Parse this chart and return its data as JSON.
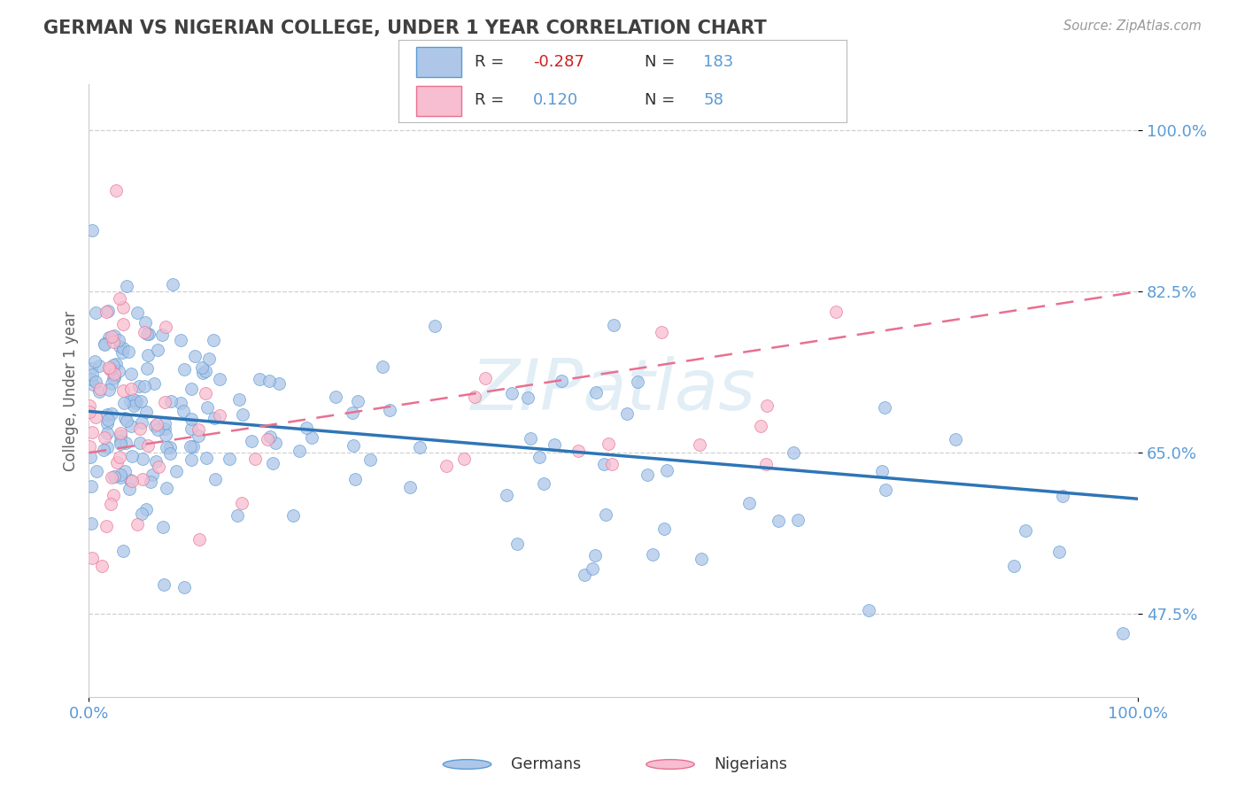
{
  "title": "GERMAN VS NIGERIAN COLLEGE, UNDER 1 YEAR CORRELATION CHART",
  "source_text": "Source: ZipAtlas.com",
  "ylabel": "College, Under 1 year",
  "xlim": [
    0.0,
    1.0
  ],
  "ylim": [
    0.385,
    1.05
  ],
  "yticks": [
    0.475,
    0.65,
    0.825,
    1.0
  ],
  "ytick_labels": [
    "47.5%",
    "65.0%",
    "82.5%",
    "100.0%"
  ],
  "german_R": -0.287,
  "german_N": 183,
  "nigerian_R": 0.12,
  "nigerian_N": 58,
  "blue_scatter_color": "#aec6e8",
  "blue_scatter_edge": "#5b9bd5",
  "pink_scatter_color": "#f7bdd0",
  "pink_scatter_edge": "#e87090",
  "blue_line_color": "#2e75b6",
  "pink_line_color": "#e87090",
  "title_color": "#404040",
  "axis_label_color": "#606060",
  "tick_label_color": "#5b9bd5",
  "grid_color": "#d0d0d0",
  "background_color": "#ffffff",
  "watermark_color": "#d0e4f0",
  "legend_R_label_color": "#404040",
  "legend_R_value_color_neg": "#cc2020",
  "legend_R_value_color_pos": "#5b9bd5",
  "legend_N_label_color": "#404040",
  "legend_N_value_color": "#5b9bd5"
}
